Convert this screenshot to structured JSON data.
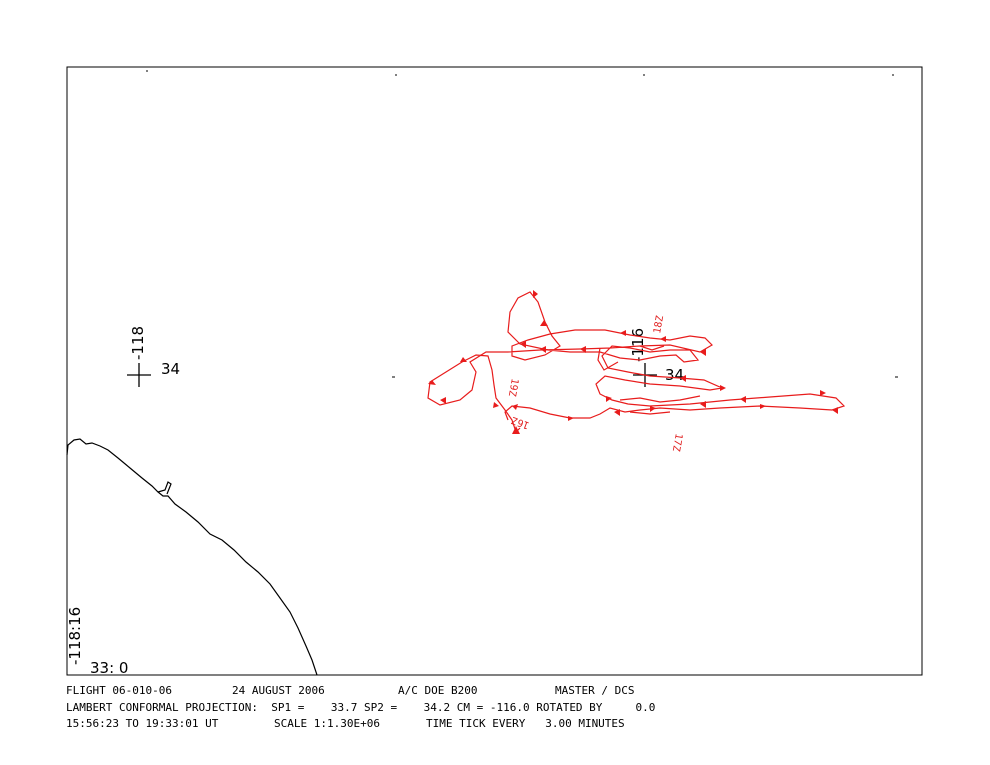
{
  "map": {
    "grid_labels": [
      {
        "lon": "-118",
        "lat": "34"
      },
      {
        "lon": "-116",
        "lat": "34"
      }
    ],
    "corner_labels": {
      "lon": "-118:16",
      "lat": "33: 0"
    },
    "time_labels": [
      "16Z",
      "17Z",
      "18Z",
      "19Z"
    ]
  },
  "footer": {
    "line1": [
      "FLIGHT 06-010-06",
      "24 AUGUST 2006",
      "A/C DOE B200",
      "MASTER / DCS"
    ],
    "line2": "LAMBERT CONFORMAL PROJECTION:  SP1 =    33.7 SP2 =    34.2 CM = -116.0 ROTATED BY     0.0",
    "line3": [
      "15:56:23 TO 19:33:01 UT",
      "SCALE 1:1.30E+06",
      "TIME TICK EVERY   3.00 MINUTES"
    ]
  }
}
